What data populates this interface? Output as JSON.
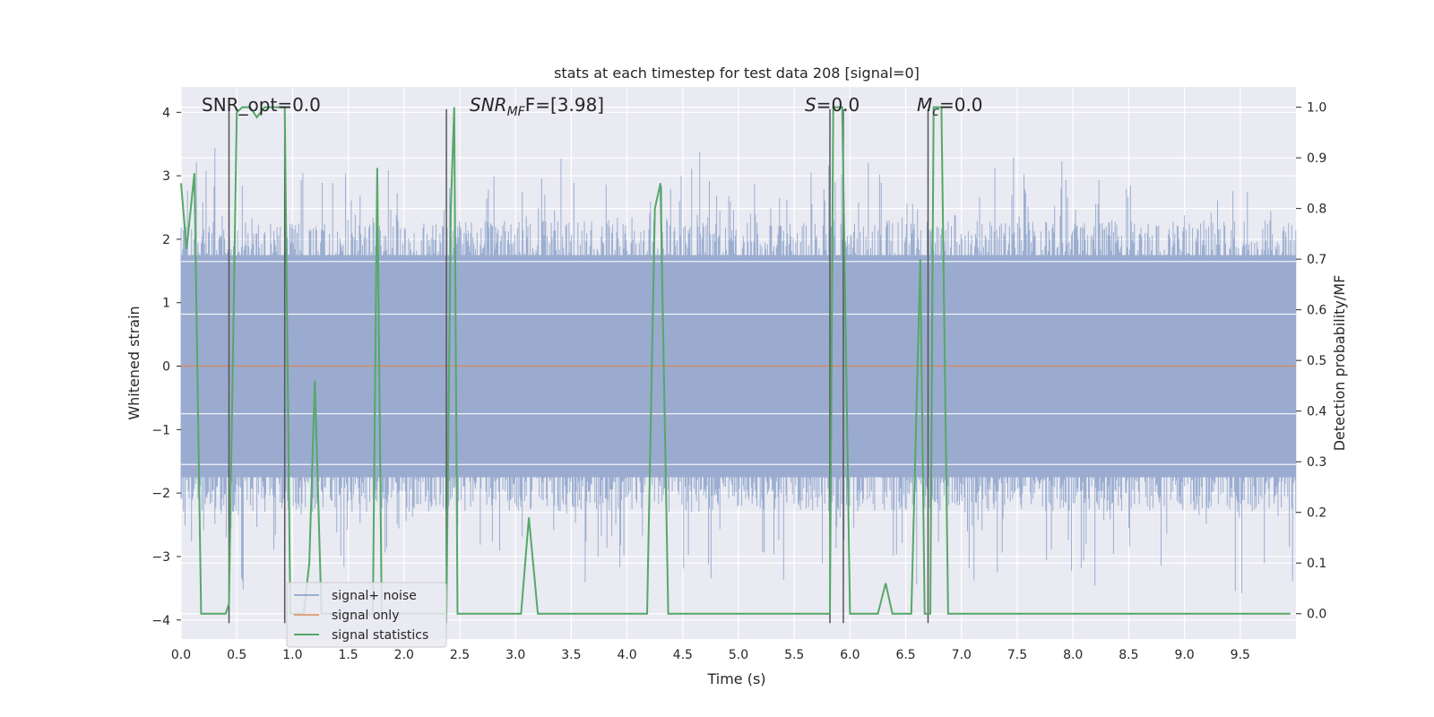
{
  "chart_data": {
    "type": "line",
    "title": "stats at each timestep for test data 208 [signal=0]",
    "xlabel": "Time (s)",
    "ylabel_left": "Whitened strain",
    "ylabel_right": "Detection probability/MF",
    "xlim": [
      0,
      10
    ],
    "ylim_left": [
      -4.3,
      4.4
    ],
    "ylim_right": [
      -0.05,
      1.04
    ],
    "x_ticks": [
      "0.0",
      "0.5",
      "1.0",
      "1.5",
      "2.0",
      "2.5",
      "3.0",
      "3.5",
      "4.0",
      "4.5",
      "5.0",
      "5.5",
      "6.0",
      "6.5",
      "7.0",
      "7.5",
      "8.0",
      "8.5",
      "9.0",
      "9.5"
    ],
    "y_left_ticks": [
      "4",
      "3",
      "2",
      "1",
      "0",
      "−1",
      "−2",
      "−3",
      "−4"
    ],
    "y_right_ticks": [
      "1.0",
      "0.9",
      "0.8",
      "0.7",
      "0.6",
      "0.5",
      "0.4",
      "0.3",
      "0.2",
      "0.1",
      "0.0"
    ],
    "grid": true,
    "legend_position": "lower-left",
    "annotations": {
      "snr_opt": "SNR_opt=0.0",
      "snr_mf_base": "SNR",
      "snr_mf_sub": "MF",
      "snr_mf_rest": "F=[3.98]",
      "s_base": "S",
      "s_rest": "=0.0",
      "mc_base": "M",
      "mc_sub": "c",
      "mc_rest": "=0.0"
    },
    "series": [
      {
        "name": "signal+ noise",
        "color": "#4c72b0",
        "note": "noise band approx ±1.8 with peaks to ±3.5"
      },
      {
        "name": "signal only",
        "color": "#dd8452",
        "values_const": 0.0
      },
      {
        "name": "signal statistics",
        "color": "#55a868",
        "x": [
          0.0,
          0.05,
          0.12,
          0.18,
          0.4,
          0.43,
          0.5,
          0.55,
          0.62,
          0.68,
          0.75,
          0.93,
          0.98,
          1.1,
          1.15,
          1.2,
          1.26,
          1.35,
          1.72,
          1.76,
          1.8,
          1.9,
          2.38,
          2.42,
          2.45,
          2.48,
          3.05,
          3.12,
          3.2,
          4.18,
          4.25,
          4.3,
          4.37,
          4.8,
          5.0,
          5.82,
          5.85,
          5.93,
          6.0,
          6.25,
          6.32,
          6.38,
          6.55,
          6.63,
          6.67,
          6.72,
          6.75,
          6.82,
          6.88,
          9.95
        ],
        "y": [
          0.85,
          0.72,
          0.87,
          0.0,
          0.0,
          0.02,
          0.99,
          1.0,
          1.0,
          0.98,
          1.0,
          1.0,
          0.0,
          0.0,
          0.1,
          0.46,
          0.0,
          0.0,
          0.0,
          0.88,
          0.0,
          0.0,
          0.0,
          0.8,
          1.0,
          0.0,
          0.0,
          0.19,
          0.0,
          0.0,
          0.8,
          0.85,
          0.0,
          0.0,
          0.0,
          0.0,
          1.0,
          1.0,
          0.0,
          0.0,
          0.06,
          0.0,
          0.0,
          0.7,
          0.0,
          0.0,
          1.0,
          1.0,
          0.0,
          0.0
        ]
      }
    ],
    "vertical_lines_x": [
      0.43,
      0.93,
      2.38,
      5.82,
      5.94,
      6.7
    ]
  }
}
